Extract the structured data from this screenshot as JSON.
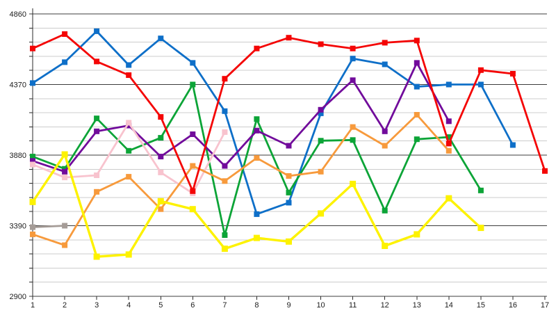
{
  "chart_data": {
    "type": "line",
    "title": "",
    "xlabel": "",
    "ylabel": "",
    "x_ticks": [
      "1",
      "2",
      "3",
      "4",
      "5",
      "6",
      "7",
      "8",
      "9",
      "10",
      "11",
      "12",
      "13",
      "14",
      "15",
      "16",
      "17"
    ],
    "y_ticks": [
      4860,
      4370,
      3880,
      3390,
      2900
    ],
    "y_min": 2900,
    "y_max": 4860,
    "y_major_step": 490,
    "y_minor_step": 98,
    "grid": {
      "major_color": "#3c3c3c",
      "minor_color": "#cccccc",
      "axis_color": "#2a2a2a",
      "background": "#ffffff",
      "legend": "none",
      "gridlines": "horizontal-only"
    },
    "marker": "square",
    "series": [
      {
        "name": "gray",
        "color": "#a59c97",
        "values": [
          3380,
          3390
        ]
      },
      {
        "name": "blue",
        "color": "#0e6fc8",
        "values": [
          4380,
          4525,
          4740,
          4505,
          4690,
          4520,
          4185,
          3470,
          3550,
          4170,
          4550,
          4510,
          4355,
          4370,
          4370,
          3950
        ]
      },
      {
        "name": "green",
        "color": "#0ca437",
        "values": [
          3870,
          3785,
          4135,
          3910,
          4000,
          4370,
          3325,
          4130,
          3620,
          3980,
          3985,
          3495,
          3990,
          4005,
          3635
        ]
      },
      {
        "name": "purple",
        "color": "#710b9b",
        "values": [
          3840,
          3765,
          4045,
          4085,
          3870,
          4025,
          3805,
          4050,
          3945,
          4195,
          4400,
          4045,
          4520,
          4115
        ]
      },
      {
        "name": "pink",
        "color": "#f8c3ce",
        "values": [
          3815,
          3725,
          3740,
          4105,
          3760,
          3615,
          4040
        ]
      },
      {
        "name": "orange",
        "color": "#f79a3c",
        "values": [
          3330,
          3255,
          3625,
          3730,
          3505,
          3805,
          3700,
          3860,
          3735,
          3765,
          4075,
          3945,
          4160,
          3910
        ]
      },
      {
        "name": "yellow",
        "color": "#fdf200",
        "values": [
          3555,
          3885,
          3175,
          3190,
          3560,
          3505,
          3230,
          3305,
          3280,
          3475,
          3680,
          3250,
          3330,
          3580,
          3375
        ]
      },
      {
        "name": "red",
        "color": "#f40505",
        "values": [
          4620,
          4720,
          4530,
          4435,
          4145,
          3630,
          4410,
          4620,
          4695,
          4650,
          4620,
          4660,
          4675,
          3960,
          4470,
          4445,
          3770
        ]
      }
    ]
  }
}
